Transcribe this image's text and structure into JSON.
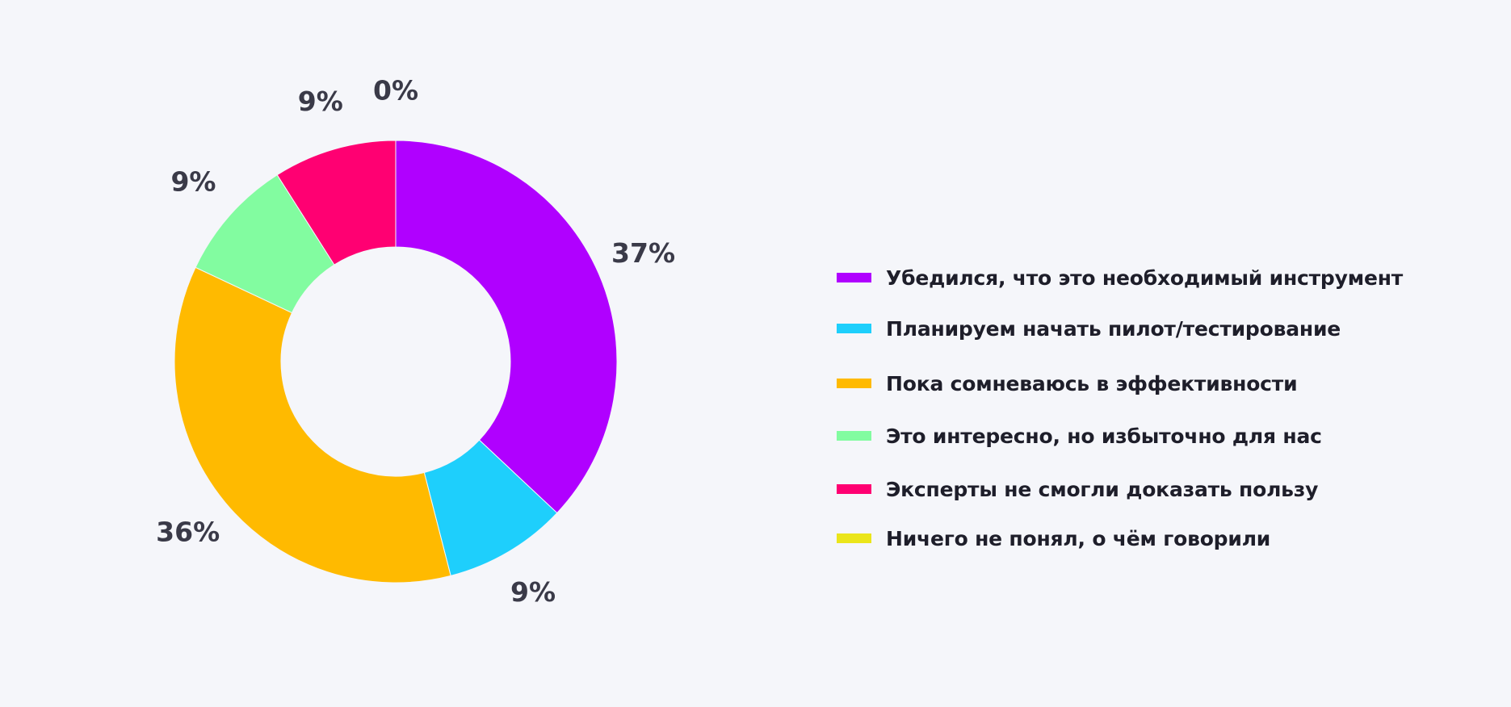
{
  "chart_data": {
    "type": "pie",
    "donut": true,
    "title": "",
    "legend_position": "right",
    "slices": [
      {
        "label": "Убедился, что это необходимый инструмент",
        "value": 37,
        "value_label": "37%",
        "color": "#b000ff"
      },
      {
        "label": "Планируем начать пилот/тестирование",
        "value": 9,
        "value_label": "9%",
        "color": "#1ecffc"
      },
      {
        "label": "Пока сомневаюсь в эффективности",
        "value": 36,
        "value_label": "36%",
        "color": "#ffba00"
      },
      {
        "label": "Это интересно, но избыточно для нас",
        "value": 9,
        "value_label": "9%",
        "color": "#82fca0"
      },
      {
        "label": "Эксперты не смогли доказать пользу",
        "value": 9,
        "value_label": "9%",
        "color": "#ff0072"
      },
      {
        "label": "Ничего не понял, о чём говорили",
        "value": 0,
        "value_label": "0%",
        "color": "#ebe51a"
      }
    ]
  }
}
